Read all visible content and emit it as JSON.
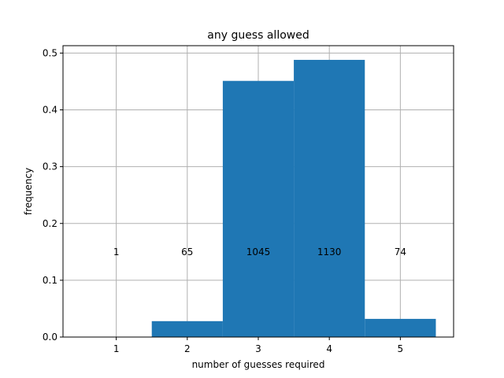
{
  "chart_data": {
    "type": "bar",
    "title": "any guess allowed",
    "xlabel": "number of guesses required",
    "ylabel": "frequency",
    "categories": [
      "1",
      "2",
      "3",
      "4",
      "5"
    ],
    "x": [
      1,
      2,
      3,
      4,
      5
    ],
    "values": [
      0.0,
      0.028,
      0.451,
      0.488,
      0.032
    ],
    "counts": [
      1,
      65,
      1045,
      1130,
      74
    ],
    "count_label_y": 0.15,
    "xlim": [
      0.25,
      5.75
    ],
    "ylim": [
      0,
      0.513
    ],
    "yticks": [
      0.0,
      0.1,
      0.2,
      0.3,
      0.4,
      0.5
    ],
    "ytick_labels": [
      "0.0",
      "0.1",
      "0.2",
      "0.3",
      "0.4",
      "0.5"
    ],
    "xtick_labels": [
      "1",
      "2",
      "3",
      "4",
      "5"
    ],
    "grid": true,
    "legend": "none",
    "colors": {
      "bar": "#1f77b4",
      "grid": "#b0b0b0",
      "axis": "#000000"
    }
  }
}
